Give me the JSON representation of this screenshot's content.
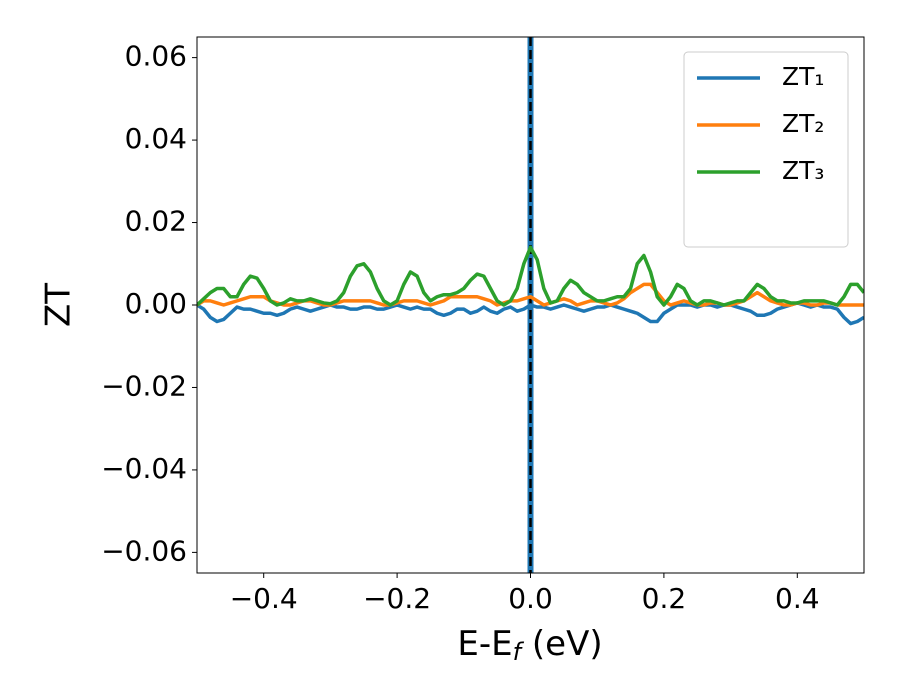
{
  "chart_data": {
    "type": "line",
    "xlabel": [
      "E-E",
      "f",
      " (eV)"
    ],
    "ylabel": "ZT",
    "x": [
      -0.5,
      -0.49,
      -0.48,
      -0.47,
      -0.46,
      -0.45,
      -0.44,
      -0.43,
      -0.42,
      -0.41,
      -0.4,
      -0.39,
      -0.38,
      -0.37,
      -0.36,
      -0.35,
      -0.34,
      -0.33,
      -0.32,
      -0.31,
      -0.3,
      -0.29,
      -0.28,
      -0.27,
      -0.26,
      -0.25,
      -0.24,
      -0.23,
      -0.22,
      -0.21,
      -0.2,
      -0.19,
      -0.18,
      -0.17,
      -0.16,
      -0.15,
      -0.14,
      -0.13,
      -0.12,
      -0.11,
      -0.1,
      -0.09,
      -0.08,
      -0.07,
      -0.06,
      -0.05,
      -0.04,
      -0.03,
      -0.02,
      -0.01,
      0,
      0.01,
      0.02,
      0.03,
      0.04,
      0.05,
      0.06,
      0.07,
      0.08,
      0.09,
      0.1,
      0.11,
      0.12,
      0.13,
      0.14,
      0.15,
      0.16,
      0.17,
      0.18,
      0.19,
      0.2,
      0.21,
      0.22,
      0.23,
      0.24,
      0.25,
      0.26,
      0.27,
      0.28,
      0.29,
      0.3,
      0.31,
      0.32,
      0.33,
      0.34,
      0.35,
      0.36,
      0.37,
      0.38,
      0.39,
      0.4,
      0.41,
      0.42,
      0.43,
      0.44,
      0.45,
      0.46,
      0.47,
      0.48,
      0.49,
      0.5
    ],
    "series": [
      {
        "name": "ZT₁",
        "color": "#1f77b4",
        "values": [
          0,
          -0.001,
          -0.003,
          -0.004,
          -0.0035,
          -0.002,
          -0.0005,
          -0.001,
          -0.001,
          -0.0015,
          -0.002,
          -0.002,
          -0.0025,
          -0.002,
          -0.001,
          -0.0005,
          -0.001,
          -0.0015,
          -0.001,
          -0.0005,
          0,
          -0.0005,
          -0.0005,
          -0.001,
          -0.001,
          -0.0005,
          -0.0005,
          -0.001,
          -0.001,
          -0.0005,
          0,
          -0.0005,
          -0.001,
          -0.0005,
          -0.001,
          -0.001,
          -0.002,
          -0.0025,
          -0.002,
          -0.001,
          -0.001,
          -0.002,
          -0.0015,
          -0.0005,
          -0.0015,
          -0.002,
          -0.001,
          -0.0005,
          -0.0015,
          -0.001,
          0,
          -0.0005,
          -0.0005,
          -0.001,
          -0.0005,
          0,
          -0.0005,
          -0.001,
          -0.0015,
          -0.001,
          -0.0005,
          -0.0005,
          0,
          -0.0005,
          -0.001,
          -0.0015,
          -0.002,
          -0.003,
          -0.004,
          -0.004,
          -0.002,
          -0.001,
          0,
          0,
          0,
          -0.0005,
          0,
          0,
          -0.0005,
          0,
          0,
          -0.0005,
          -0.001,
          -0.0015,
          -0.0025,
          -0.0025,
          -0.002,
          -0.001,
          -0.0005,
          0,
          0.0005,
          0,
          -0.0005,
          0,
          -0.0005,
          -0.0005,
          -0.001,
          -0.003,
          -0.0045,
          -0.004,
          -0.003
        ]
      },
      {
        "name": "ZT₂",
        "color": "#ff7f0e",
        "values": [
          0,
          0.001,
          0.001,
          0.0005,
          0,
          0.0005,
          0.001,
          0.0015,
          0.002,
          0.002,
          0.002,
          0.001,
          0.0005,
          0,
          0,
          0.0005,
          0.001,
          0.001,
          0.0005,
          0,
          0,
          0.0005,
          0.001,
          0.001,
          0.001,
          0.001,
          0.001,
          0.0005,
          0,
          0,
          0.0005,
          0.001,
          0.001,
          0.001,
          0.0005,
          0,
          0.0005,
          0.001,
          0.002,
          0.002,
          0.002,
          0.002,
          0.002,
          0.0015,
          0.001,
          0,
          0.0005,
          0.001,
          0.001,
          0.0015,
          0.002,
          0.001,
          0,
          0.0005,
          0.001,
          0.0015,
          0.001,
          0,
          0.0005,
          0.001,
          0.001,
          0.0005,
          0,
          0.0005,
          0.0015,
          0.003,
          0.004,
          0.005,
          0.005,
          0.003,
          0.001,
          0,
          0.0005,
          0.001,
          0.0005,
          0,
          0,
          0.0005,
          0.0005,
          0,
          0,
          0.0005,
          0.001,
          0.002,
          0.003,
          0.002,
          0.001,
          0.0005,
          0,
          0,
          0.0005,
          0.0005,
          0,
          0,
          0.0005,
          0.0005,
          0,
          0,
          0,
          0,
          0
        ]
      },
      {
        "name": "ZT₃",
        "color": "#2ca02c",
        "values": [
          0,
          0.0015,
          0.003,
          0.004,
          0.004,
          0.002,
          0.002,
          0.005,
          0.007,
          0.0065,
          0.004,
          0.001,
          0,
          0.0005,
          0.0015,
          0.001,
          0.001,
          0.0015,
          0.001,
          0.0005,
          0.0003,
          0.001,
          0.003,
          0.007,
          0.0095,
          0.01,
          0.008,
          0.004,
          0.001,
          0,
          0.001,
          0.005,
          0.008,
          0.007,
          0.003,
          0.001,
          0.002,
          0.0025,
          0.0025,
          0.003,
          0.004,
          0.006,
          0.0075,
          0.007,
          0.004,
          0.001,
          0,
          0.001,
          0.004,
          0.01,
          0.014,
          0.011,
          0.004,
          0.0005,
          0.001,
          0.004,
          0.006,
          0.005,
          0.003,
          0.002,
          0.001,
          0.001,
          0.0015,
          0.002,
          0.002,
          0.004,
          0.01,
          0.012,
          0.008,
          0.002,
          0,
          0.002,
          0.005,
          0.004,
          0.001,
          0,
          0.001,
          0.001,
          0.0005,
          0,
          0.0005,
          0.001,
          0.001,
          0.003,
          0.005,
          0.004,
          0.002,
          0.001,
          0.001,
          0.0005,
          0.0005,
          0.001,
          0.001,
          0.001,
          0.001,
          0.0005,
          0,
          0.002,
          0.005,
          0.005,
          0.003
        ]
      }
    ],
    "vlines": [
      {
        "x": 0,
        "color": "#1f77b4",
        "style": "solid"
      },
      {
        "x": 0,
        "color": "#000000",
        "style": "dashed"
      }
    ],
    "xlim": [
      -0.5,
      0.5
    ],
    "ylim": [
      -0.065,
      0.065
    ],
    "xticks": [
      {
        "value": -0.4,
        "label": "−0.4"
      },
      {
        "value": -0.2,
        "label": "−0.2"
      },
      {
        "value": 0,
        "label": "0.0"
      },
      {
        "value": 0.2,
        "label": "0.2"
      },
      {
        "value": 0.4,
        "label": "0.4"
      }
    ],
    "yticks": [
      {
        "value": -0.06,
        "label": "−0.06"
      },
      {
        "value": -0.04,
        "label": "−0.04"
      },
      {
        "value": -0.02,
        "label": "−0.02"
      },
      {
        "value": 0,
        "label": "0.00"
      },
      {
        "value": 0.02,
        "label": "0.02"
      },
      {
        "value": 0.04,
        "label": "0.04"
      },
      {
        "value": 0.06,
        "label": "0.06"
      }
    ],
    "legend": "upper right"
  }
}
